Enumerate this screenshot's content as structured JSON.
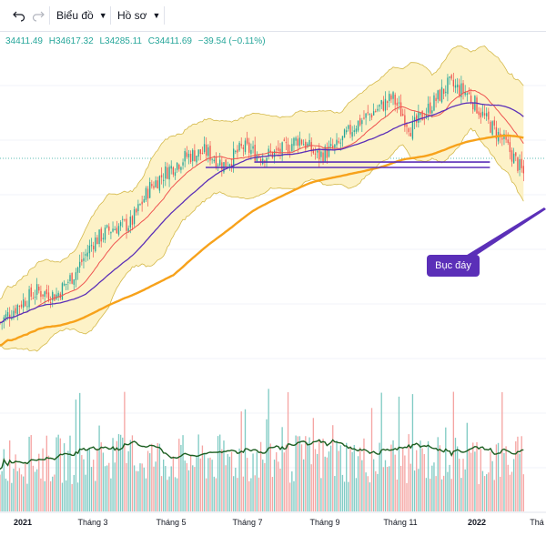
{
  "toolbar": {
    "undo_icon": "undo-icon",
    "redo_icon": "redo-icon",
    "chart_label": "Biểu đồ",
    "profile_label": "Hồ sơ"
  },
  "ohlc": {
    "open": "34411.49",
    "high": "H34617.32",
    "low": "L34285.11",
    "close": "C34411.69",
    "change": "−39.54 (−0.11%)"
  },
  "annotation": {
    "label": "Bục đáy"
  },
  "colors": {
    "up": "#26a69a",
    "down": "#ef5350",
    "bollinger_fill": "#fdf2c7",
    "bollinger_line": "#d4b94a",
    "ma_fast": "#ef5350",
    "ma_mid": "#5b2fb8",
    "ma_slow": "#f7a21b",
    "volume_ma": "#1b5e20",
    "annotation": "#5b2fb8"
  },
  "chart_data": {
    "type": "line",
    "x_tick_labels": [
      "2021",
      "Tháng 3",
      "Tháng 5",
      "Tháng 7",
      "Tháng 9",
      "Tháng 11",
      "2022",
      "Thá"
    ],
    "price_series": [
      {
        "t": 0,
        "close": 30800
      },
      {
        "t": 0.5,
        "close": 31200
      },
      {
        "t": 1,
        "close": 31500
      },
      {
        "t": 1.5,
        "close": 31400
      },
      {
        "t": 2,
        "close": 31900
      },
      {
        "t": 2.5,
        "close": 32600
      },
      {
        "t": 3,
        "close": 32900
      },
      {
        "t": 3.5,
        "close": 33000
      },
      {
        "t": 4,
        "close": 33800
      },
      {
        "t": 4.5,
        "close": 34200
      },
      {
        "t": 5,
        "close": 34500
      },
      {
        "t": 5.5,
        "close": 34600
      },
      {
        "t": 6,
        "close": 34300
      },
      {
        "t": 6.5,
        "close": 34700
      },
      {
        "t": 7,
        "close": 34500
      },
      {
        "t": 7.5,
        "close": 34600
      },
      {
        "t": 8,
        "close": 34900
      },
      {
        "t": 8.5,
        "close": 34500
      },
      {
        "t": 9,
        "close": 34700
      },
      {
        "t": 9.5,
        "close": 35200
      },
      {
        "t": 10,
        "close": 35500
      },
      {
        "t": 10.5,
        "close": 35800
      },
      {
        "t": 11,
        "close": 35100
      },
      {
        "t": 11.5,
        "close": 35600
      },
      {
        "t": 12,
        "close": 36100
      },
      {
        "t": 12.5,
        "close": 35900
      },
      {
        "t": 13,
        "close": 35300
      },
      {
        "t": 13.5,
        "close": 34800
      },
      {
        "t": 14,
        "close": 34100
      }
    ],
    "support_lines": [
      {
        "t_start": 6.8,
        "t_end": 13.1,
        "price": 34370
      },
      {
        "t_start": 5.5,
        "t_end": 13.1,
        "price": 34250
      }
    ]
  }
}
